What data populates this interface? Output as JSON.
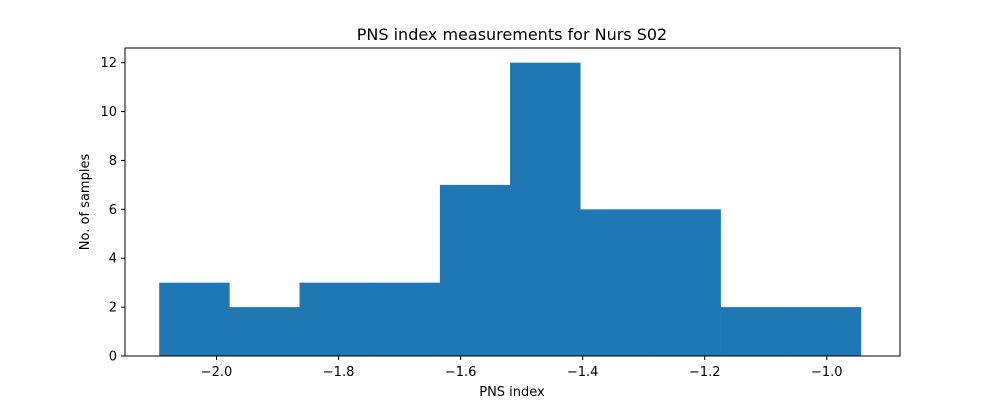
{
  "chart_data": {
    "type": "bar",
    "title": "PNS index measurements for Nurs S02",
    "xlabel": "PNS index",
    "ylabel": "No. of samples",
    "xlim": [
      -2.15,
      -0.88
    ],
    "ylim": [
      0,
      12.6
    ],
    "xticks": [
      -2.0,
      -1.8,
      -1.6,
      -1.4,
      -1.2,
      -1.0
    ],
    "xtick_labels": [
      "−2.0",
      "−1.8",
      "−1.6",
      "−1.4",
      "−1.2",
      "−1.0"
    ],
    "yticks": [
      0,
      2,
      4,
      6,
      8,
      10,
      12
    ],
    "ytick_labels": [
      "0",
      "2",
      "4",
      "6",
      "8",
      "10",
      "12"
    ],
    "bin_edges": [
      -2.094,
      -1.979,
      -1.864,
      -1.749,
      -1.634,
      -1.519,
      -1.404,
      -1.289,
      -1.174,
      -1.059,
      -0.944
    ],
    "values": [
      3,
      2,
      3,
      3,
      7,
      12,
      6,
      6,
      2,
      2
    ],
    "bar_color": "#1f77b4",
    "grid": false,
    "legend": "none"
  }
}
